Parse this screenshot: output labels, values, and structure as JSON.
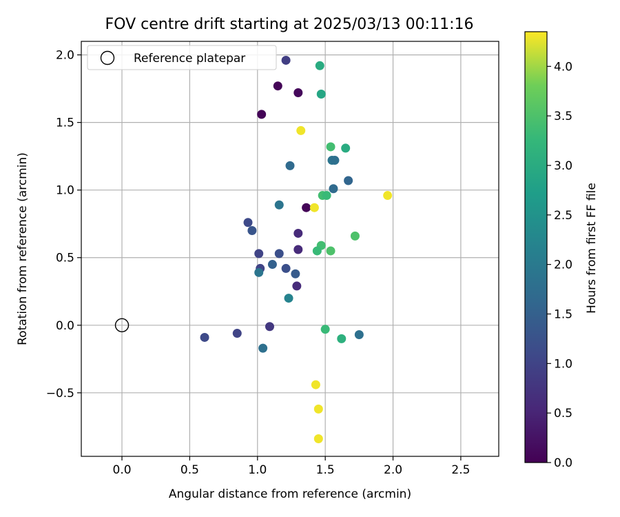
{
  "chart_data": {
    "type": "scatter",
    "title": "FOV centre drift starting at 2025/03/13 00:11:16",
    "xlabel": "Angular distance from reference (arcmin)",
    "ylabel": "Rotation from reference (arcmin)",
    "xlim": [
      -0.3,
      2.78
    ],
    "ylim": [
      -0.97,
      2.1
    ],
    "xticks": [
      0.0,
      0.5,
      1.0,
      1.5,
      2.0,
      2.5
    ],
    "xtick_labels": [
      "0.0",
      "0.5",
      "1.0",
      "1.5",
      "2.0",
      "2.5"
    ],
    "yticks": [
      -0.5,
      0.0,
      0.5,
      1.0,
      1.5,
      2.0
    ],
    "ytick_labels": [
      "−0.5",
      "0.0",
      "0.5",
      "1.0",
      "1.5",
      "2.0"
    ],
    "grid": true,
    "legend": {
      "position": "upper-left",
      "entries": [
        "Reference platepar"
      ]
    },
    "reference_point": {
      "x": 0.0,
      "y": 0.0
    },
    "colorbar": {
      "label": "Hours from first FF file",
      "colormap": "viridis",
      "range": [
        0.0,
        4.35
      ],
      "ticks": [
        0.0,
        0.5,
        1.0,
        1.5,
        2.0,
        2.5,
        3.0,
        3.5,
        4.0
      ],
      "tick_labels": [
        "0.0",
        "0.5",
        "1.0",
        "1.5",
        "2.0",
        "2.5",
        "3.0",
        "3.5",
        "4.0"
      ]
    },
    "points": [
      {
        "x": 1.21,
        "y": 1.96,
        "c": 0.9
      },
      {
        "x": 1.46,
        "y": 1.92,
        "c": 3.0
      },
      {
        "x": 1.15,
        "y": 1.77,
        "c": 0.05
      },
      {
        "x": 1.3,
        "y": 1.72,
        "c": 0.1
      },
      {
        "x": 1.47,
        "y": 1.71,
        "c": 2.9
      },
      {
        "x": 1.03,
        "y": 1.56,
        "c": 0.05
      },
      {
        "x": 1.32,
        "y": 1.44,
        "c": 4.3
      },
      {
        "x": 1.54,
        "y": 1.32,
        "c": 3.4
      },
      {
        "x": 1.65,
        "y": 1.31,
        "c": 3.0
      },
      {
        "x": 1.24,
        "y": 1.18,
        "c": 1.7
      },
      {
        "x": 1.55,
        "y": 1.22,
        "c": 1.9
      },
      {
        "x": 1.57,
        "y": 1.22,
        "c": 1.8
      },
      {
        "x": 1.67,
        "y": 1.07,
        "c": 1.6
      },
      {
        "x": 1.56,
        "y": 1.01,
        "c": 1.7
      },
      {
        "x": 1.96,
        "y": 0.96,
        "c": 4.3
      },
      {
        "x": 1.48,
        "y": 0.96,
        "c": 3.4
      },
      {
        "x": 1.51,
        "y": 0.96,
        "c": 3.3
      },
      {
        "x": 1.16,
        "y": 0.89,
        "c": 1.9
      },
      {
        "x": 1.36,
        "y": 0.87,
        "c": 0.05
      },
      {
        "x": 1.42,
        "y": 0.87,
        "c": 4.3
      },
      {
        "x": 0.93,
        "y": 0.76,
        "c": 1.1
      },
      {
        "x": 0.96,
        "y": 0.7,
        "c": 1.3
      },
      {
        "x": 1.3,
        "y": 0.68,
        "c": 0.6
      },
      {
        "x": 1.72,
        "y": 0.66,
        "c": 3.5
      },
      {
        "x": 1.47,
        "y": 0.59,
        "c": 3.4
      },
      {
        "x": 1.3,
        "y": 0.56,
        "c": 0.6
      },
      {
        "x": 1.01,
        "y": 0.53,
        "c": 1.0
      },
      {
        "x": 1.16,
        "y": 0.53,
        "c": 1.2
      },
      {
        "x": 1.44,
        "y": 0.55,
        "c": 3.3
      },
      {
        "x": 1.54,
        "y": 0.55,
        "c": 3.5
      },
      {
        "x": 1.02,
        "y": 0.42,
        "c": 1.0
      },
      {
        "x": 1.11,
        "y": 0.45,
        "c": 1.5
      },
      {
        "x": 1.21,
        "y": 0.42,
        "c": 1.2
      },
      {
        "x": 1.01,
        "y": 0.39,
        "c": 1.9
      },
      {
        "x": 1.28,
        "y": 0.38,
        "c": 1.4
      },
      {
        "x": 1.29,
        "y": 0.29,
        "c": 0.6
      },
      {
        "x": 1.23,
        "y": 0.2,
        "c": 2.2
      },
      {
        "x": 1.09,
        "y": -0.01,
        "c": 0.8
      },
      {
        "x": 1.5,
        "y": -0.03,
        "c": 3.3
      },
      {
        "x": 1.75,
        "y": -0.07,
        "c": 1.8
      },
      {
        "x": 0.85,
        "y": -0.06,
        "c": 1.0
      },
      {
        "x": 0.61,
        "y": -0.09,
        "c": 1.1
      },
      {
        "x": 1.62,
        "y": -0.1,
        "c": 3.1
      },
      {
        "x": 1.04,
        "y": -0.17,
        "c": 1.8
      },
      {
        "x": 1.43,
        "y": -0.44,
        "c": 4.3
      },
      {
        "x": 1.45,
        "y": -0.62,
        "c": 4.3
      },
      {
        "x": 1.45,
        "y": -0.84,
        "c": 4.3
      }
    ]
  }
}
